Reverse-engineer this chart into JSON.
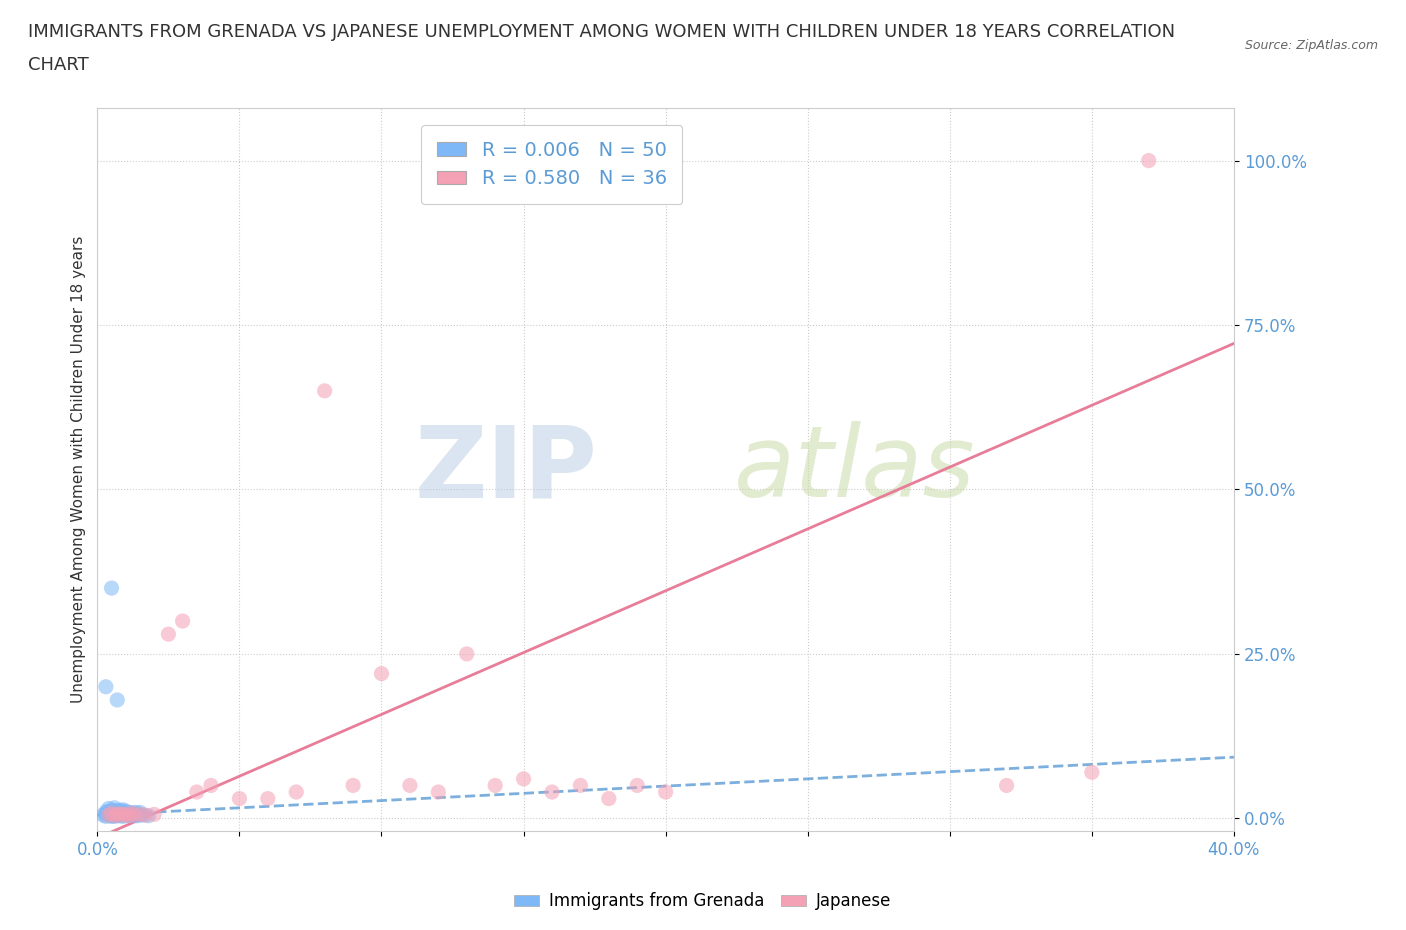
{
  "title_line1": "IMMIGRANTS FROM GRENADA VS JAPANESE UNEMPLOYMENT AMONG WOMEN WITH CHILDREN UNDER 18 YEARS CORRELATION",
  "title_line2": "CHART",
  "source": "Source: ZipAtlas.com",
  "ylabel": "Unemployment Among Women with Children Under 18 years",
  "xlim": [
    0.0,
    0.4
  ],
  "ylim": [
    -0.02,
    1.08
  ],
  "xticks": [
    0.0,
    0.05,
    0.1,
    0.15,
    0.2,
    0.25,
    0.3,
    0.35,
    0.4
  ],
  "yticks": [
    0.0,
    0.25,
    0.5,
    0.75,
    1.0
  ],
  "ytick_labels": [
    "0.0%",
    "25.0%",
    "50.0%",
    "75.0%",
    "100.0%"
  ],
  "xtick_labels": [
    "0.0%",
    "",
    "",
    "",
    "",
    "",
    "",
    "",
    "40.0%"
  ],
  "blue_scatter_x": [
    0.002,
    0.003,
    0.003,
    0.003,
    0.004,
    0.004,
    0.004,
    0.004,
    0.004,
    0.005,
    0.005,
    0.005,
    0.005,
    0.005,
    0.006,
    0.006,
    0.006,
    0.006,
    0.006,
    0.006,
    0.007,
    0.007,
    0.007,
    0.007,
    0.007,
    0.008,
    0.008,
    0.008,
    0.008,
    0.009,
    0.009,
    0.009,
    0.009,
    0.01,
    0.01,
    0.01,
    0.011,
    0.011,
    0.012,
    0.012,
    0.013,
    0.013,
    0.014,
    0.014,
    0.015,
    0.015,
    0.016,
    0.018,
    0.005,
    0.003
  ],
  "blue_scatter_y": [
    0.005,
    0.003,
    0.007,
    0.01,
    0.004,
    0.006,
    0.008,
    0.01,
    0.015,
    0.003,
    0.005,
    0.007,
    0.009,
    0.012,
    0.003,
    0.005,
    0.007,
    0.009,
    0.011,
    0.016,
    0.004,
    0.006,
    0.008,
    0.012,
    0.18,
    0.004,
    0.006,
    0.008,
    0.012,
    0.003,
    0.006,
    0.009,
    0.013,
    0.004,
    0.007,
    0.011,
    0.005,
    0.009,
    0.004,
    0.008,
    0.005,
    0.009,
    0.004,
    0.008,
    0.005,
    0.009,
    0.005,
    0.004,
    0.35,
    0.2
  ],
  "pink_scatter_x": [
    0.004,
    0.005,
    0.006,
    0.007,
    0.008,
    0.009,
    0.01,
    0.011,
    0.012,
    0.013,
    0.015,
    0.017,
    0.02,
    0.025,
    0.03,
    0.035,
    0.04,
    0.05,
    0.06,
    0.07,
    0.08,
    0.09,
    0.1,
    0.11,
    0.12,
    0.13,
    0.14,
    0.15,
    0.16,
    0.17,
    0.18,
    0.19,
    0.2,
    0.35,
    0.37,
    0.32
  ],
  "pink_scatter_y": [
    0.005,
    0.008,
    0.004,
    0.006,
    0.007,
    0.005,
    0.006,
    0.004,
    0.008,
    0.005,
    0.006,
    0.005,
    0.006,
    0.28,
    0.3,
    0.04,
    0.05,
    0.03,
    0.03,
    0.04,
    0.65,
    0.05,
    0.22,
    0.05,
    0.04,
    0.25,
    0.05,
    0.06,
    0.04,
    0.05,
    0.03,
    0.05,
    0.04,
    0.07,
    1.0,
    0.05
  ],
  "blue_color": "#7eb8f7",
  "pink_color": "#f4a0b5",
  "blue_line_color": "#5b9bd5",
  "pink_line_color": "#e87d9a",
  "regression_blue_slope": 0.22,
  "regression_blue_intercept": 0.005,
  "regression_pink_slope": 1.88,
  "regression_pink_intercept": -0.03,
  "legend_R_blue": "0.006",
  "legend_N_blue": "50",
  "legend_R_pink": "0.580",
  "legend_N_pink": "36",
  "watermark_zip": "ZIP",
  "watermark_atlas": "atlas",
  "watermark_color_zip": "#b8cce4",
  "watermark_color_atlas": "#c5d8a0",
  "grid_color": "#cccccc",
  "background_color": "#ffffff",
  "title_fontsize": 13,
  "axis_label_fontsize": 11,
  "tick_fontsize": 12,
  "scatter_size": 120,
  "scatter_alpha": 0.55,
  "line_width": 2.0
}
